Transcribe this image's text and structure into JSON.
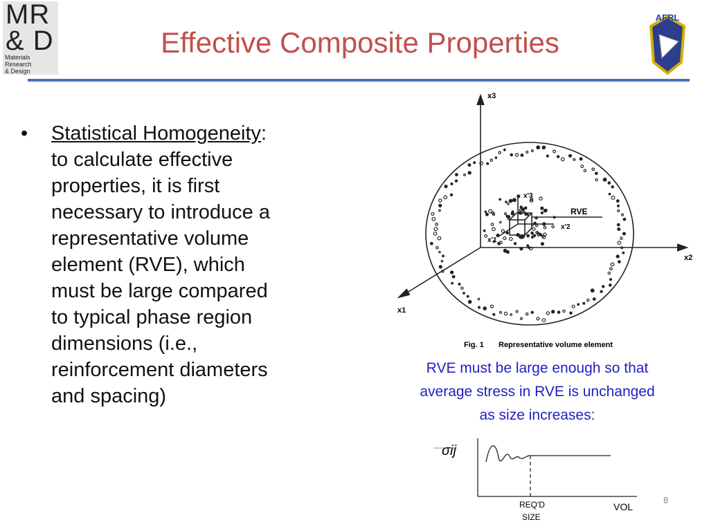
{
  "logo": {
    "line1": "MR",
    "line2": "& D",
    "line3": "Materials Research",
    "line4": "& Design"
  },
  "afrl": "AFRL",
  "title": "Effective Composite Properties",
  "bullet": {
    "term": "Statistical Homogeneity",
    "term_suffix": ":",
    "lines": [
      "to calculate effective",
      "properties, it is first",
      "necessary to introduce a",
      "representative volume",
      "element (RVE), which",
      "must be large compared",
      "to typical phase region",
      "dimensions (i.e.,",
      "reinforcement diameters",
      "and spacing)"
    ]
  },
  "figure": {
    "x3": "x3",
    "x3p": "x'3",
    "rve": "RVE",
    "x2p": "x'2",
    "x1p": "x'1",
    "x2": "x2",
    "x1": "x1",
    "fig": "Fig. 1",
    "fig_caption": "Representative volume element"
  },
  "caption": [
    "RVE must be large enough so that",
    "average stress in RVE is unchanged",
    "as size increases:"
  ],
  "graph": {
    "ylabel": "σij",
    "req": "REQ'D",
    "size": "SIZE",
    "xlabel": "VOL"
  },
  "page_number": "8"
}
